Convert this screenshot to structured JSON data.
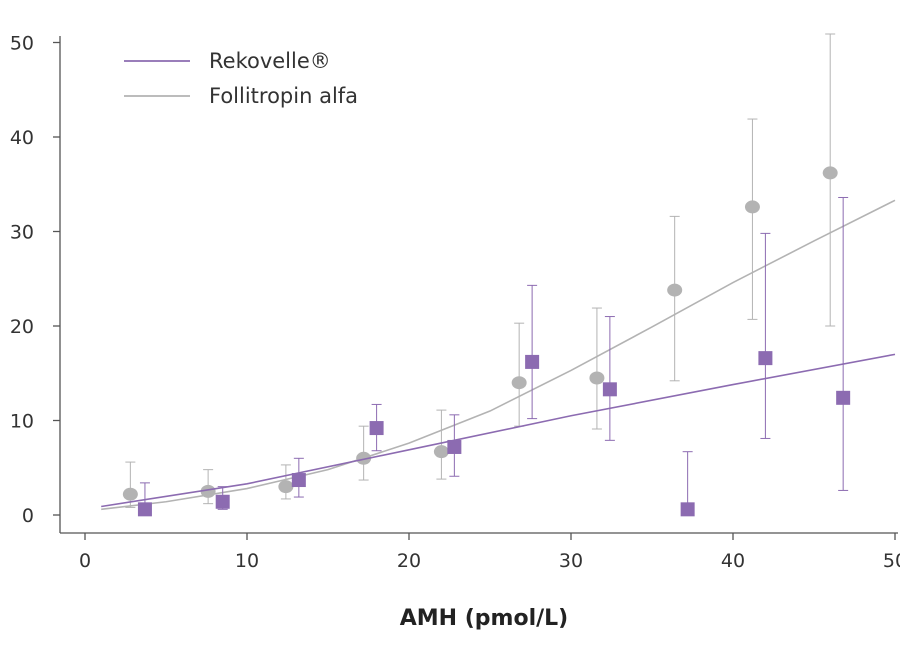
{
  "chart_data": {
    "type": "scatter",
    "title": "",
    "xlabel": "AMH (pmol/L)",
    "ylabel": "",
    "xlim": [
      0,
      50
    ],
    "ylim": [
      0,
      50
    ],
    "x_ticks": [
      "0",
      "10",
      "20",
      "30",
      "40",
      "50"
    ],
    "y_ticks": [
      "0",
      "10",
      "20",
      "30",
      "40",
      "50"
    ],
    "grid": false,
    "legend_position": "top-left",
    "series": [
      {
        "name": "Rekovelle®",
        "color": "#8c6bb1",
        "marker": "square",
        "points": [
          {
            "x": 3.7,
            "y": 0.6,
            "lo": 0.2,
            "hi": 3.4
          },
          {
            "x": 8.5,
            "y": 1.4,
            "lo": 0.6,
            "hi": 3.0
          },
          {
            "x": 13.2,
            "y": 3.7,
            "lo": 1.9,
            "hi": 6.0
          },
          {
            "x": 18.0,
            "y": 9.2,
            "lo": 6.8,
            "hi": 11.7
          },
          {
            "x": 22.8,
            "y": 7.2,
            "lo": 4.1,
            "hi": 10.6
          },
          {
            "x": 27.6,
            "y": 16.2,
            "lo": 10.2,
            "hi": 24.3
          },
          {
            "x": 32.4,
            "y": 13.3,
            "lo": 7.9,
            "hi": 21.0
          },
          {
            "x": 37.2,
            "y": 0.6,
            "lo": 0.2,
            "hi": 6.7
          },
          {
            "x": 42.0,
            "y": 16.6,
            "lo": 8.1,
            "hi": 29.8
          },
          {
            "x": 46.8,
            "y": 12.4,
            "lo": 2.6,
            "hi": 33.6
          }
        ],
        "fit_line": [
          [
            1,
            0.9
          ],
          [
            10,
            3.3
          ],
          [
            20,
            6.9
          ],
          [
            30,
            10.5
          ],
          [
            40,
            13.8
          ],
          [
            50,
            17.0
          ]
        ]
      },
      {
        "name": "Follitropin alfa",
        "color": "#b3b3b3",
        "marker": "circle",
        "points": [
          {
            "x": 2.8,
            "y": 2.2,
            "lo": 0.8,
            "hi": 5.6
          },
          {
            "x": 7.6,
            "y": 2.5,
            "lo": 1.2,
            "hi": 4.8
          },
          {
            "x": 12.4,
            "y": 3.0,
            "lo": 1.7,
            "hi": 5.3
          },
          {
            "x": 17.2,
            "y": 6.0,
            "lo": 3.7,
            "hi": 9.4
          },
          {
            "x": 22.0,
            "y": 6.7,
            "lo": 3.8,
            "hi": 11.1
          },
          {
            "x": 26.8,
            "y": 14.0,
            "lo": 9.4,
            "hi": 20.3
          },
          {
            "x": 31.6,
            "y": 14.5,
            "lo": 9.1,
            "hi": 21.9
          },
          {
            "x": 36.4,
            "y": 23.8,
            "lo": 14.2,
            "hi": 31.6
          },
          {
            "x": 41.2,
            "y": 32.6,
            "lo": 20.7,
            "hi": 41.9
          },
          {
            "x": 46.0,
            "y": 36.2,
            "lo": 20.0,
            "hi": 50.9
          }
        ],
        "fit_line": [
          [
            1,
            0.6
          ],
          [
            5,
            1.4
          ],
          [
            10,
            2.8
          ],
          [
            15,
            4.8
          ],
          [
            20,
            7.6
          ],
          [
            25,
            11.0
          ],
          [
            30,
            15.3
          ],
          [
            35,
            19.9
          ],
          [
            40,
            24.6
          ],
          [
            45,
            29.0
          ],
          [
            50,
            33.3
          ]
        ]
      }
    ]
  }
}
